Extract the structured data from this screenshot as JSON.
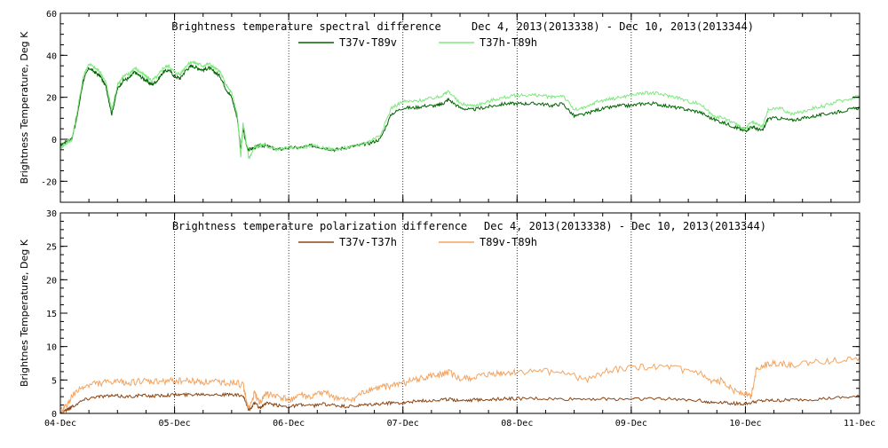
{
  "chart_data": [
    {
      "type": "line",
      "title": "Brightness temperature spectral difference",
      "subtitle": "Dec  4, 2013(2013338) - Dec 10, 2013(2013344)",
      "ylabel": "Brightness Temperature, Deg K",
      "xlabel": "",
      "ylim": [
        -30,
        60
      ],
      "yticks": [
        -20,
        0,
        20,
        40,
        60
      ],
      "xlim": [
        0,
        7
      ],
      "xticks": [
        0,
        1,
        2,
        3,
        4,
        5,
        6,
        7
      ],
      "xtick_labels": [
        "04-Dec",
        "05-Dec",
        "06-Dec",
        "07-Dec",
        "08-Dec",
        "09-Dec",
        "10-Dec",
        "11-Dec"
      ],
      "grid": "dotted vertical lines at day boundaries",
      "legend_position": "top-center",
      "series": [
        {
          "name": "T37v-T89v",
          "color": "#006400",
          "x": [
            0,
            0.05,
            0.1,
            0.15,
            0.2,
            0.25,
            0.3,
            0.35,
            0.4,
            0.45,
            0.5,
            0.55,
            0.6,
            0.65,
            0.7,
            0.75,
            0.8,
            0.85,
            0.9,
            0.95,
            1.0,
            1.05,
            1.1,
            1.15,
            1.2,
            1.25,
            1.3,
            1.35,
            1.4,
            1.45,
            1.5,
            1.55,
            1.58,
            1.6,
            1.63,
            1.65,
            1.7,
            1.75,
            1.8,
            1.9,
            2.0,
            2.1,
            2.2,
            2.3,
            2.4,
            2.5,
            2.6,
            2.7,
            2.8,
            2.9,
            3.0,
            3.1,
            3.2,
            3.3,
            3.35,
            3.4,
            3.5,
            3.6,
            3.7,
            3.8,
            3.9,
            4.0,
            4.1,
            4.2,
            4.3,
            4.4,
            4.5,
            4.6,
            4.7,
            4.8,
            4.9,
            5.0,
            5.1,
            5.2,
            5.3,
            5.4,
            5.5,
            5.6,
            5.7,
            5.8,
            5.9,
            5.95,
            6.0,
            6.05,
            6.1,
            6.15,
            6.2,
            6.3,
            6.4,
            6.5,
            6.6,
            6.7,
            6.8,
            6.9,
            7.0
          ],
          "values": [
            -3,
            -1,
            0,
            12,
            28,
            34,
            32,
            30,
            25,
            12,
            24,
            28,
            29,
            32,
            30,
            28,
            26,
            28,
            32,
            33,
            30,
            29,
            33,
            35,
            34,
            33,
            34,
            32,
            30,
            24,
            20,
            10,
            -5,
            5,
            -3,
            -5,
            -4,
            -3,
            -3,
            -5,
            -4,
            -4,
            -3,
            -4,
            -5,
            -4,
            -3,
            -2,
            0,
            12,
            15,
            15,
            16,
            16,
            17,
            19,
            15,
            14,
            15,
            16,
            17,
            17,
            17,
            17,
            16,
            17,
            11,
            12,
            14,
            15,
            16,
            16,
            17,
            17,
            16,
            15,
            14,
            13,
            10,
            8,
            6,
            5,
            4,
            6,
            5,
            4,
            10,
            10,
            9,
            10,
            11,
            12,
            13,
            14,
            15
          ],
          "jitter": 0.8
        },
        {
          "name": "T37h-T89h",
          "color": "#7ee87e",
          "x": [
            0,
            0.05,
            0.1,
            0.15,
            0.2,
            0.25,
            0.3,
            0.35,
            0.4,
            0.45,
            0.5,
            0.55,
            0.6,
            0.65,
            0.7,
            0.75,
            0.8,
            0.85,
            0.9,
            0.95,
            1.0,
            1.05,
            1.1,
            1.15,
            1.2,
            1.25,
            1.3,
            1.35,
            1.4,
            1.45,
            1.5,
            1.55,
            1.58,
            1.6,
            1.63,
            1.65,
            1.7,
            1.75,
            1.8,
            1.9,
            2.0,
            2.1,
            2.2,
            2.3,
            2.4,
            2.5,
            2.6,
            2.7,
            2.8,
            2.9,
            3.0,
            3.1,
            3.2,
            3.3,
            3.35,
            3.4,
            3.5,
            3.6,
            3.7,
            3.8,
            3.9,
            4.0,
            4.1,
            4.2,
            4.3,
            4.4,
            4.5,
            4.6,
            4.7,
            4.8,
            4.9,
            5.0,
            5.1,
            5.2,
            5.3,
            5.4,
            5.5,
            5.6,
            5.7,
            5.8,
            5.9,
            5.95,
            6.0,
            6.05,
            6.1,
            6.15,
            6.2,
            6.3,
            6.4,
            6.5,
            6.6,
            6.7,
            6.8,
            6.9,
            7.0
          ],
          "values": [
            -4,
            -2,
            0,
            14,
            30,
            36,
            34,
            32,
            27,
            14,
            26,
            30,
            31,
            34,
            32,
            30,
            28,
            30,
            34,
            35,
            32,
            31,
            35,
            37,
            36,
            35,
            36,
            34,
            32,
            26,
            22,
            12,
            -9,
            8,
            -2,
            -9,
            -4,
            -3,
            -3,
            -5,
            -4,
            -4,
            -3,
            -4,
            -5,
            -4,
            -3,
            -1,
            2,
            15,
            18,
            18,
            19,
            20,
            21,
            23,
            17,
            16,
            17,
            19,
            20,
            21,
            21,
            21,
            20,
            21,
            14,
            15,
            18,
            19,
            20,
            21,
            22,
            22,
            21,
            20,
            18,
            17,
            12,
            10,
            8,
            6,
            5,
            8,
            7,
            6,
            14,
            15,
            12,
            13,
            15,
            16,
            18,
            19,
            21
          ],
          "jitter": 0.8
        }
      ]
    },
    {
      "type": "line",
      "title": "Brightness temperature polarization difference",
      "subtitle": "Dec  4, 2013(2013338) - Dec 10, 2013(2013344)",
      "ylabel": "Brightnes Temperature, Deg K",
      "xlabel": "",
      "ylim": [
        0,
        30
      ],
      "yticks": [
        0,
        5,
        10,
        15,
        20,
        25,
        30
      ],
      "xlim": [
        0,
        7
      ],
      "xticks": [
        0,
        1,
        2,
        3,
        4,
        5,
        6,
        7
      ],
      "xtick_labels": [
        "04-Dec",
        "05-Dec",
        "06-Dec",
        "07-Dec",
        "08-Dec",
        "09-Dec",
        "10-Dec",
        "11-Dec"
      ],
      "grid": "dotted vertical lines at day boundaries",
      "legend_position": "top-center",
      "series": [
        {
          "name": "T37v-T37h",
          "color": "#8b4513",
          "x": [
            0,
            0.05,
            0.1,
            0.2,
            0.3,
            0.4,
            0.5,
            0.6,
            0.7,
            0.8,
            0.9,
            1.0,
            1.1,
            1.2,
            1.3,
            1.4,
            1.5,
            1.6,
            1.65,
            1.7,
            1.75,
            1.8,
            1.9,
            2.0,
            2.1,
            2.2,
            2.3,
            2.4,
            2.5,
            2.6,
            2.7,
            2.8,
            2.9,
            3.0,
            3.1,
            3.2,
            3.3,
            3.4,
            3.5,
            3.6,
            3.7,
            3.8,
            3.9,
            4.0,
            4.2,
            4.4,
            4.6,
            4.8,
            5.0,
            5.2,
            5.4,
            5.6,
            5.7,
            5.8,
            5.9,
            6.0,
            6.1,
            6.2,
            6.3,
            6.4,
            6.6,
            6.8,
            7.0
          ],
          "values": [
            0.2,
            0.5,
            1.0,
            2.0,
            2.5,
            2.6,
            2.6,
            2.5,
            2.7,
            2.6,
            2.7,
            2.8,
            2.8,
            2.9,
            2.9,
            2.8,
            2.8,
            2.6,
            0.5,
            1.5,
            0.8,
            1.5,
            1.2,
            1.0,
            1.3,
            1.1,
            1.4,
            1.2,
            1.0,
            1.1,
            1.3,
            1.4,
            1.6,
            1.6,
            1.8,
            1.9,
            2.0,
            2.1,
            2.0,
            2.0,
            2.1,
            2.1,
            2.2,
            2.2,
            2.2,
            2.1,
            2.2,
            2.1,
            2.2,
            2.2,
            2.1,
            2.0,
            1.6,
            1.7,
            1.5,
            1.4,
            1.8,
            1.9,
            1.9,
            2.0,
            2.1,
            2.3,
            2.5
          ],
          "jitter": 0.25
        },
        {
          "name": "T89v-T89h",
          "color": "#f4a460",
          "x": [
            0,
            0.05,
            0.1,
            0.2,
            0.3,
            0.4,
            0.5,
            0.6,
            0.7,
            0.8,
            0.9,
            1.0,
            1.1,
            1.2,
            1.3,
            1.4,
            1.5,
            1.6,
            1.65,
            1.7,
            1.75,
            1.8,
            1.9,
            2.0,
            2.1,
            2.2,
            2.3,
            2.4,
            2.5,
            2.6,
            2.7,
            2.8,
            2.9,
            3.0,
            3.1,
            3.2,
            3.3,
            3.4,
            3.5,
            3.6,
            3.7,
            3.8,
            3.9,
            4.0,
            4.2,
            4.4,
            4.6,
            4.8,
            5.0,
            5.2,
            5.4,
            5.6,
            5.7,
            5.8,
            5.9,
            6.0,
            6.05,
            6.1,
            6.2,
            6.3,
            6.4,
            6.6,
            6.8,
            7.0
          ],
          "values": [
            0.3,
            1.0,
            2.5,
            4.0,
            4.5,
            4.6,
            4.7,
            4.6,
            4.8,
            4.7,
            4.8,
            4.9,
            4.9,
            4.8,
            4.7,
            4.7,
            4.6,
            4.3,
            0.5,
            3.0,
            1.5,
            3.0,
            2.5,
            2.0,
            2.8,
            2.3,
            3.2,
            2.5,
            1.8,
            2.5,
            3.5,
            3.8,
            4.2,
            4.5,
            5.0,
            5.4,
            5.7,
            6.2,
            5.0,
            5.3,
            5.6,
            5.9,
            6.0,
            6.1,
            6.3,
            6.2,
            5.0,
            6.5,
            6.8,
            7.0,
            6.7,
            6.0,
            4.5,
            5.0,
            3.5,
            3.0,
            2.5,
            7.0,
            7.3,
            7.5,
            7.2,
            7.6,
            8.0,
            8.4
          ],
          "jitter": 0.5
        }
      ]
    }
  ]
}
